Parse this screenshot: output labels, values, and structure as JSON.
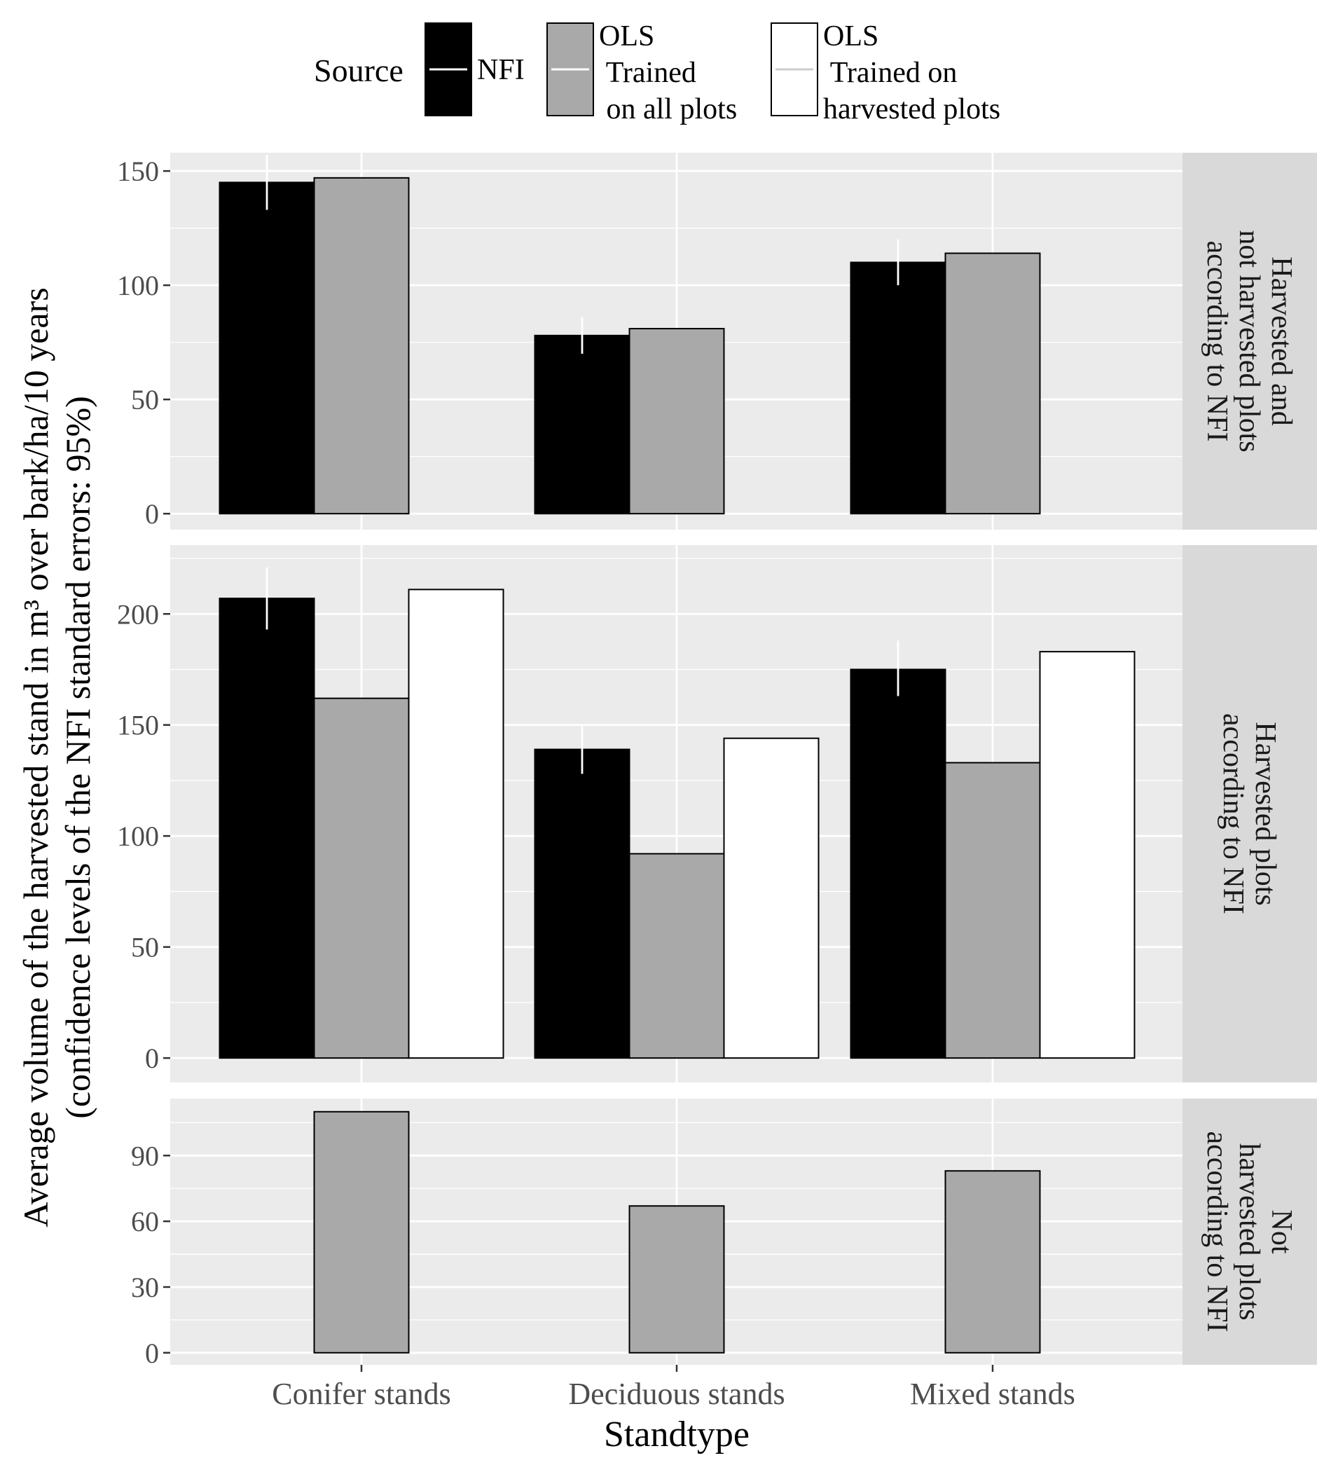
{
  "chart_data": {
    "type": "bar",
    "title": "",
    "xlabel": "Standtype",
    "ylabel": "Average volume of the harvested stand in m³ over bark/ha/10 years",
    "ylabel2": "(confidence levels of the NFI standard errors: 95%)",
    "categories": [
      "Conifer stands",
      "Deciduous stands",
      "Mixed stands"
    ],
    "legend": {
      "title": "Source",
      "position": "top",
      "entries": [
        {
          "key": "nfi",
          "lines": [
            "NFI"
          ],
          "fill": "#000000"
        },
        {
          "key": "ols_all",
          "lines": [
            "OLS",
            " Trained",
            " on all plots"
          ],
          "fill": "#a9a9a9"
        },
        {
          "key": "ols_harv",
          "lines": [
            "OLS",
            " Trained on",
            "harvested plots"
          ],
          "fill": "#ffffff"
        }
      ]
    },
    "colors": {
      "nfi": "#000000",
      "ols_all": "#a9a9a9",
      "ols_harv": "#ffffff",
      "panel_bg": "#ebebeb",
      "strip_bg": "#d9d9d9",
      "grid": "#ffffff",
      "axis_text": "#4d4d4d"
    },
    "facets": [
      {
        "strip": [
          "Harvested and",
          "not harvested plots",
          "according to NFI"
        ],
        "ylim": [
          -7,
          158
        ],
        "yticks": [
          0,
          50,
          100,
          150
        ],
        "series": [
          {
            "key": "nfi",
            "values": [
              145,
              78,
              110
            ],
            "err_low": [
              133,
              70,
              100
            ],
            "err_high": [
              157,
              86,
              120
            ]
          },
          {
            "key": "ols_all",
            "values": [
              147,
              81,
              114
            ]
          }
        ]
      },
      {
        "strip": [
          "Harvested plots",
          "according to NFI"
        ],
        "ylim": [
          -11,
          231
        ],
        "yticks": [
          0,
          50,
          100,
          150,
          200
        ],
        "series": [
          {
            "key": "nfi",
            "values": [
              207,
              139,
              175
            ],
            "err_low": [
              193,
              128,
              163
            ],
            "err_high": [
              221,
              150,
              188
            ]
          },
          {
            "key": "ols_all",
            "values": [
              162,
              92,
              133
            ]
          },
          {
            "key": "ols_harv",
            "values": [
              211,
              144,
              183
            ]
          }
        ]
      },
      {
        "strip": [
          "Not",
          "harvested plots",
          "according to NFI"
        ],
        "ylim": [
          -5.5,
          116
        ],
        "yticks": [
          0,
          30,
          60,
          90
        ],
        "series": [
          {
            "key": "ols_all",
            "values": [
              110,
              67,
              83
            ]
          }
        ]
      }
    ]
  }
}
